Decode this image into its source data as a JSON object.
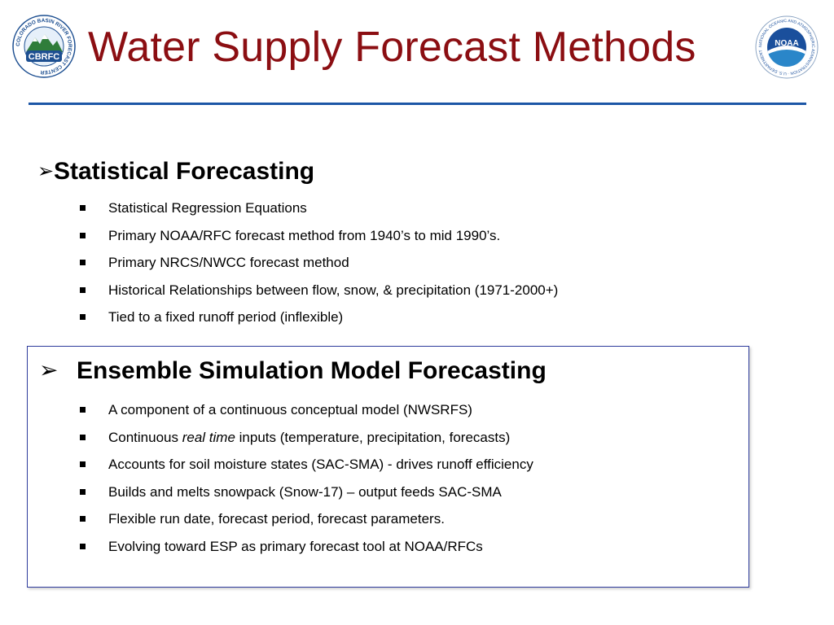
{
  "header": {
    "title": "Water Supply Forecast Methods",
    "left_logo": {
      "ring_text": "COLORADO BASIN RIVER FORECAST CENTER",
      "badge": "CBRFC"
    },
    "right_logo": {
      "ring_text": "NATIONAL OCEANIC AND ATMOSPHERIC ADMINISTRATION · U.S. DEPARTMENT OF COMMERCE",
      "badge": "NOAA"
    }
  },
  "section1": {
    "marker": "➢",
    "heading": "Statistical Forecasting",
    "items": [
      "Statistical Regression Equations",
      "Primary NOAA/RFC forecast method from 1940’s to mid 1990’s.",
      "Primary NRCS/NWCC forecast method",
      "Historical Relationships between flow, snow, & precipitation (1971-2000+)",
      "Tied to a fixed runoff period (inflexible)"
    ]
  },
  "section2": {
    "marker": "➢",
    "heading": "Ensemble Simulation Model Forecasting",
    "items": [
      "A component of a continuous conceptual model (NWSRFS)",
      {
        "before": "Continuous ",
        "emphasis": "real time",
        "after": " inputs (temperature, precipitation, forecasts)"
      },
      "Accounts for soil moisture states (SAC-SMA) - drives runoff efficiency",
      "Builds and melts snowpack (Snow-17) – output feeds SAC-SMA",
      "Flexible run date, forecast period, forecast parameters.",
      "Evolving toward ESP as primary forecast tool at NOAA/RFCs"
    ]
  },
  "colors": {
    "title": "#8b0e12",
    "rule": "#1c56a6",
    "box_border": "#2f3c9c"
  }
}
